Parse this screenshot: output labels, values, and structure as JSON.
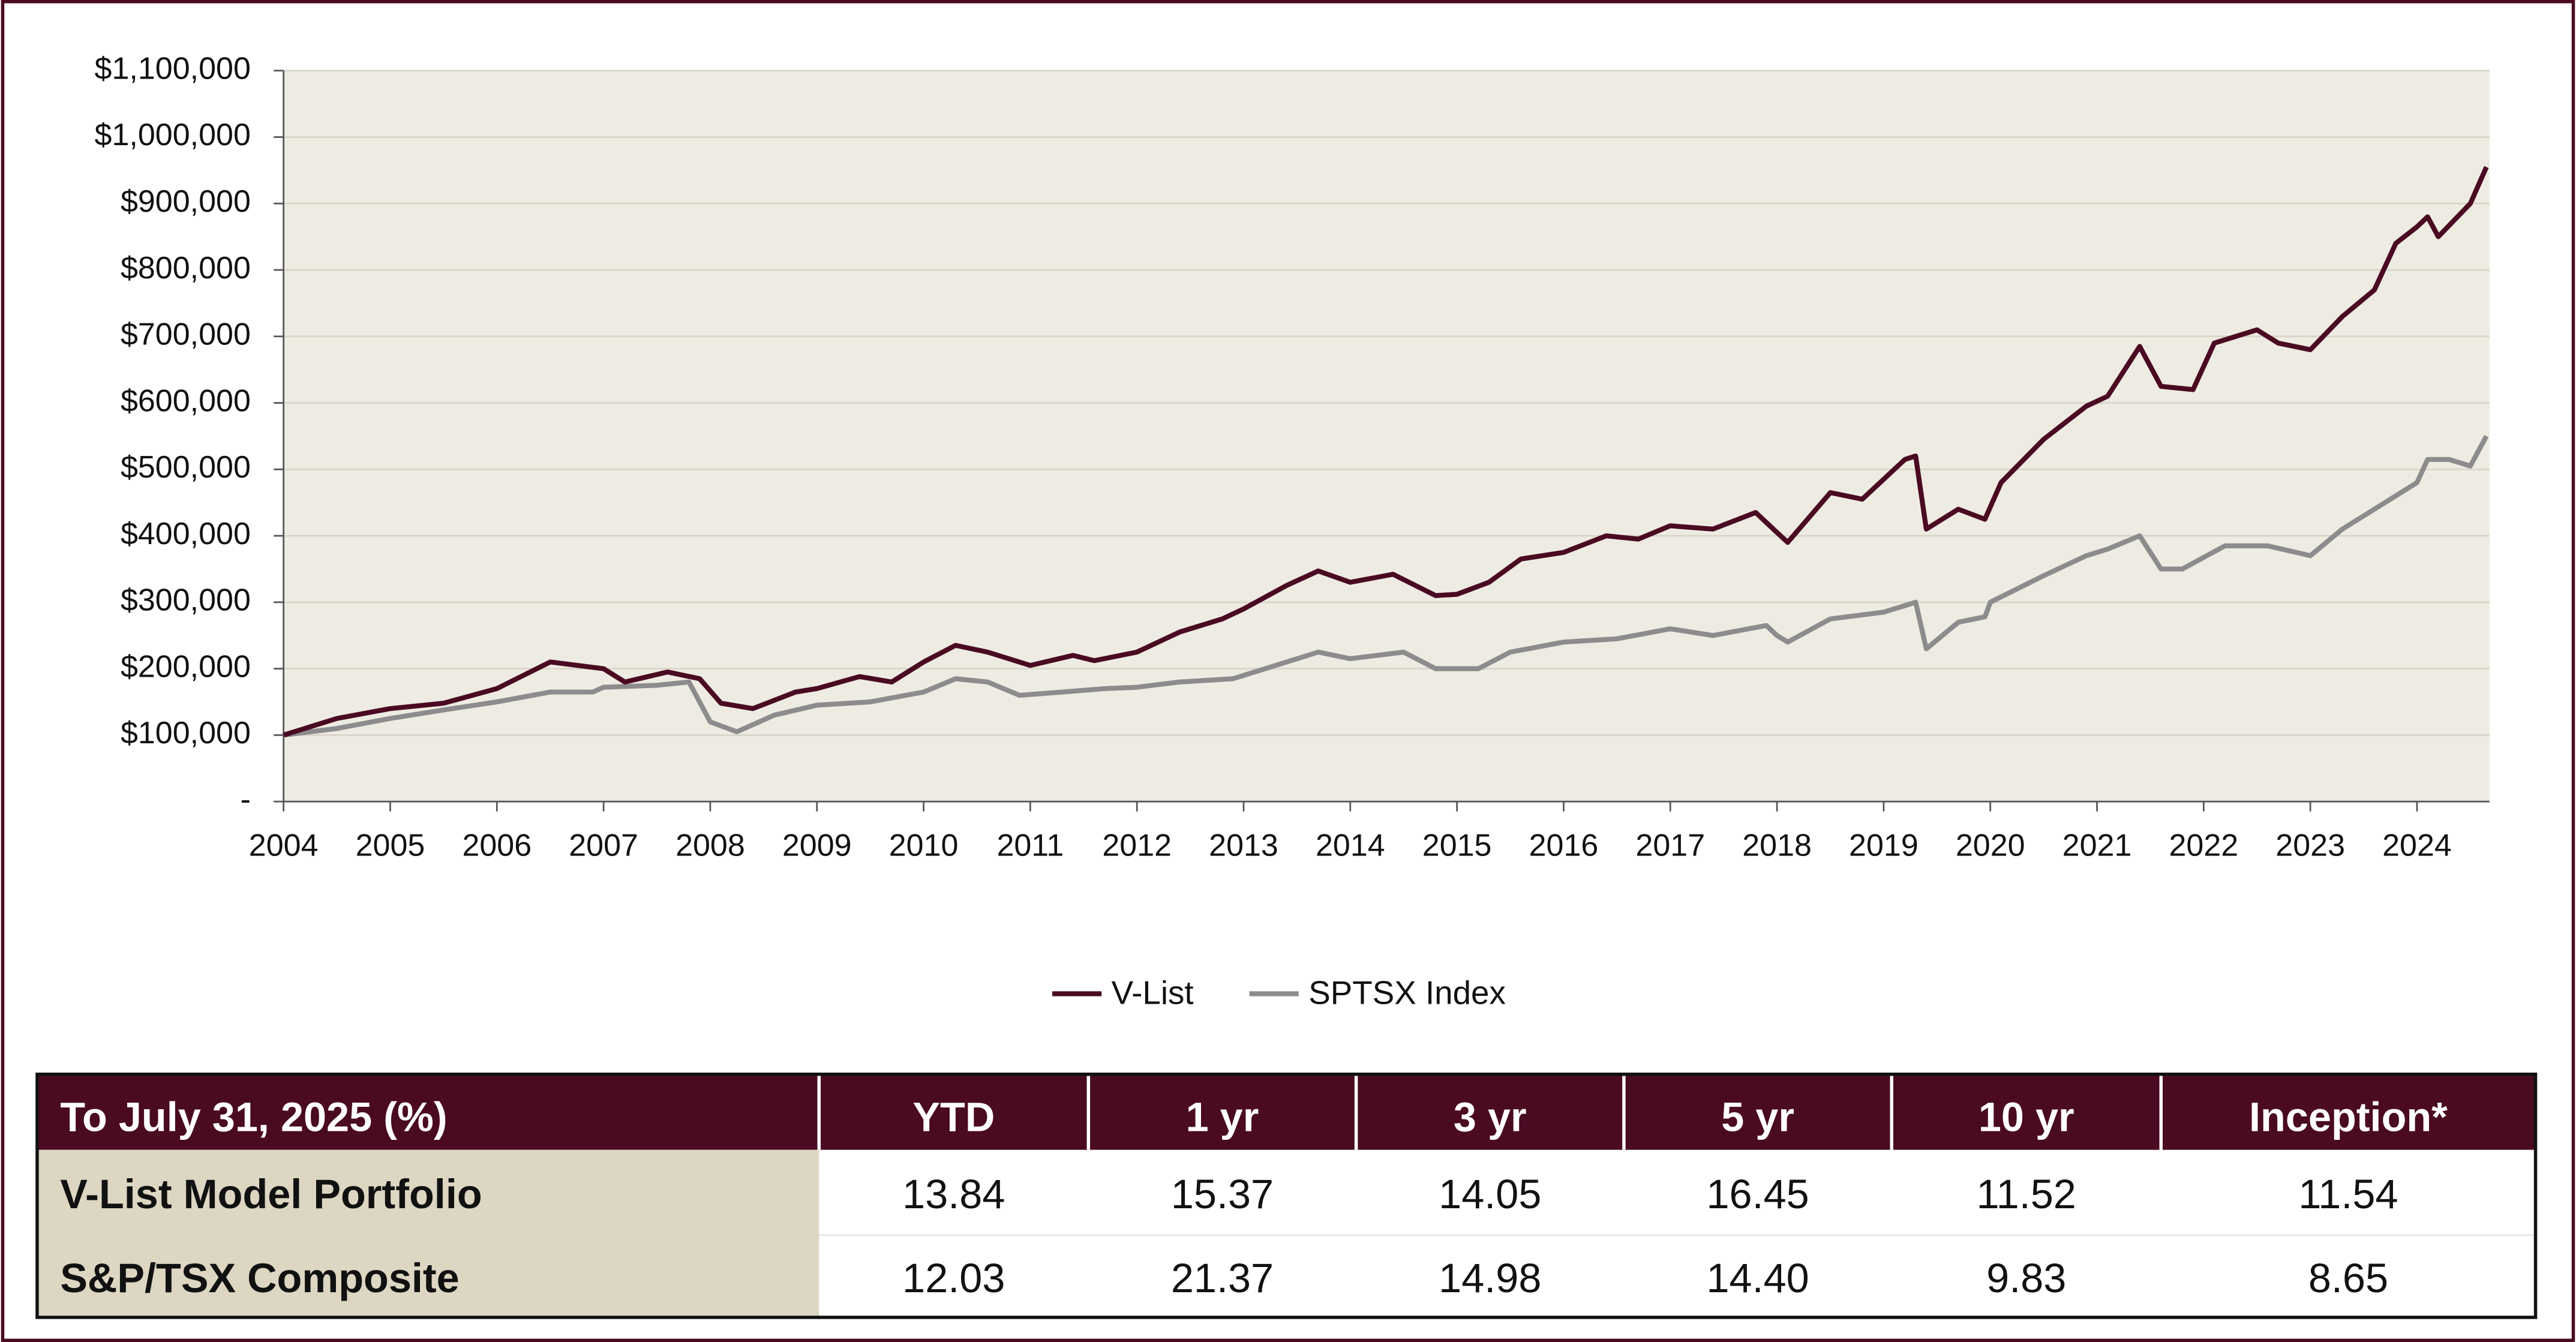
{
  "chart_data": {
    "type": "line",
    "xlim": [
      2004,
      2024.68
    ],
    "xticks": [
      2004,
      2005,
      2006,
      2007,
      2008,
      2009,
      2010,
      2011,
      2012,
      2013,
      2014,
      2015,
      2016,
      2017,
      2018,
      2019,
      2020,
      2021,
      2022,
      2023,
      2024
    ],
    "ylim": [
      0,
      1100000
    ],
    "yticks": [
      {
        "value": 0,
        "label": "-"
      },
      {
        "value": 100000,
        "label": "$100,000"
      },
      {
        "value": 200000,
        "label": "$200,000"
      },
      {
        "value": 300000,
        "label": "$300,000"
      },
      {
        "value": 400000,
        "label": "$400,000"
      },
      {
        "value": 500000,
        "label": "$500,000"
      },
      {
        "value": 600000,
        "label": "$600,000"
      },
      {
        "value": 700000,
        "label": "$700,000"
      },
      {
        "value": 800000,
        "label": "$800,000"
      },
      {
        "value": 900000,
        "label": "$900,000"
      },
      {
        "value": 1000000,
        "label": "$1,000,000"
      },
      {
        "value": 1100000,
        "label": "$1,100,000"
      }
    ],
    "grid": true,
    "legend": "bottom",
    "series": [
      {
        "name": "V-List",
        "color": "#4a0a22",
        "x": [
          2004.0,
          2004.5,
          2005.0,
          2005.5,
          2006.0,
          2006.5,
          2007.0,
          2007.2,
          2007.6,
          2007.9,
          2008.1,
          2008.4,
          2008.8,
          2009.0,
          2009.4,
          2009.7,
          2010.0,
          2010.3,
          2010.6,
          2011.0,
          2011.4,
          2011.6,
          2012.0,
          2012.4,
          2012.8,
          2013.0,
          2013.4,
          2013.7,
          2014.0,
          2014.4,
          2014.8,
          2015.0,
          2015.3,
          2015.6,
          2016.0,
          2016.4,
          2016.7,
          2017.0,
          2017.4,
          2017.8,
          2018.0,
          2018.1,
          2018.5,
          2018.8,
          2019.0,
          2019.2,
          2019.3,
          2019.4,
          2019.7,
          2019.95,
          2020.1,
          2020.5,
          2020.9,
          2021.1,
          2021.4,
          2021.6,
          2021.9,
          2022.1,
          2022.5,
          2022.7,
          2023.0,
          2023.3,
          2023.6,
          2023.8,
          2024.0,
          2024.1,
          2024.2,
          2024.5,
          2024.65
        ],
        "values": [
          100000,
          125000,
          140000,
          148000,
          170000,
          210000,
          200000,
          180000,
          195000,
          185000,
          148000,
          140000,
          165000,
          170000,
          188000,
          180000,
          210000,
          235000,
          225000,
          205000,
          220000,
          212000,
          225000,
          255000,
          275000,
          290000,
          325000,
          347000,
          330000,
          342000,
          310000,
          312000,
          330000,
          365000,
          375000,
          400000,
          395000,
          415000,
          410000,
          435000,
          405000,
          390000,
          465000,
          455000,
          485000,
          515000,
          520000,
          410000,
          440000,
          425000,
          480000,
          545000,
          595000,
          610000,
          685000,
          625000,
          620000,
          690000,
          710000,
          690000,
          680000,
          730000,
          770000,
          840000,
          865000,
          880000,
          850000,
          900000,
          955000
        ]
      },
      {
        "name": "SPTSX Index",
        "color": "#8c8c8c",
        "x": [
          2004.0,
          2004.5,
          2005.0,
          2005.5,
          2006.0,
          2006.5,
          2006.9,
          2007.0,
          2007.5,
          2007.8,
          2008.0,
          2008.25,
          2008.6,
          2009.0,
          2009.5,
          2010.0,
          2010.3,
          2010.6,
          2010.9,
          2011.3,
          2011.7,
          2012.0,
          2012.4,
          2012.9,
          2013.3,
          2013.7,
          2014.0,
          2014.5,
          2014.8,
          2015.2,
          2015.5,
          2016.0,
          2016.5,
          2017.0,
          2017.4,
          2017.9,
          2018.0,
          2018.1,
          2018.5,
          2019.0,
          2019.2,
          2019.3,
          2019.4,
          2019.7,
          2019.95,
          2020.0,
          2020.5,
          2020.9,
          2021.1,
          2021.4,
          2021.6,
          2021.8,
          2022.2,
          2022.6,
          2023.0,
          2023.3,
          2023.6,
          2023.9,
          2024.0,
          2024.1,
          2024.3,
          2024.5,
          2024.65
        ],
        "values": [
          100000,
          110000,
          125000,
          138000,
          150000,
          165000,
          165000,
          172000,
          175000,
          180000,
          120000,
          105000,
          130000,
          145000,
          150000,
          165000,
          185000,
          180000,
          160000,
          165000,
          170000,
          172000,
          180000,
          185000,
          205000,
          225000,
          215000,
          225000,
          200000,
          200000,
          225000,
          240000,
          245000,
          260000,
          250000,
          265000,
          250000,
          240000,
          275000,
          285000,
          295000,
          300000,
          230000,
          270000,
          278000,
          300000,
          340000,
          370000,
          380000,
          400000,
          350000,
          350000,
          385000,
          385000,
          370000,
          410000,
          440000,
          470000,
          480000,
          515000,
          515000,
          505000,
          550000
        ]
      }
    ]
  },
  "table": {
    "header": [
      "To July 31, 2025 (%)",
      "YTD",
      "1 yr",
      "3 yr",
      "5 yr",
      "10 yr",
      "Inception*"
    ],
    "rows": [
      [
        "V-List Model Portfolio",
        "13.84",
        "15.37",
        "14.05",
        "16.45",
        "11.52",
        "11.54"
      ],
      [
        "S&P/TSX Composite",
        "12.03",
        "21.37",
        "14.98",
        "14.40",
        "9.83",
        "8.65"
      ]
    ]
  }
}
